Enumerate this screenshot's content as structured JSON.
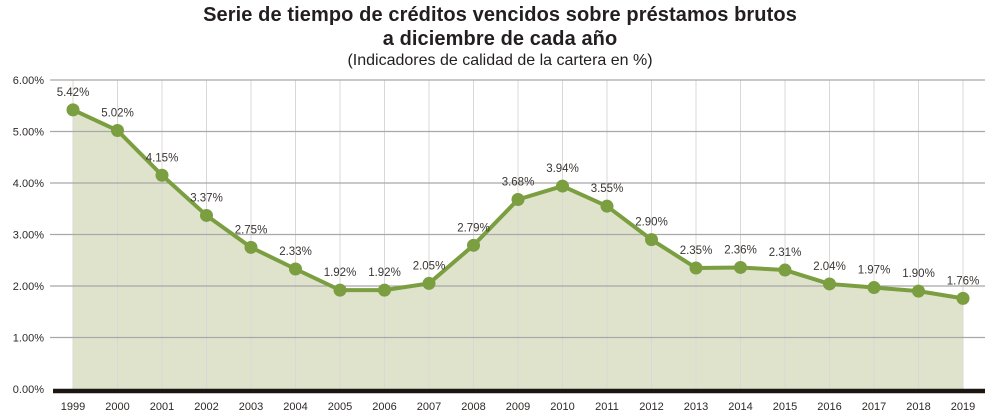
{
  "header": {
    "title_line1": "Serie de tiempo de créditos vencidos sobre préstamos brutos",
    "title_line2": "a diciembre de cada año",
    "subtitle": "(Indicadores de calidad de la cartera en %)"
  },
  "chart_data": {
    "type": "area",
    "title": "Serie de tiempo de créditos vencidos sobre préstamos brutos a diciembre de cada año",
    "subtitle": "(Indicadores de calidad de la cartera en %)",
    "x": [
      "1999",
      "2000",
      "2001",
      "2002",
      "2003",
      "2004",
      "2005",
      "2006",
      "2007",
      "2008",
      "2009",
      "2010",
      "2011",
      "2012",
      "2013",
      "2014",
      "2015",
      "2016",
      "2017",
      "2018",
      "2019"
    ],
    "values": [
      5.42,
      5.02,
      4.15,
      3.37,
      2.75,
      2.33,
      1.92,
      1.92,
      2.05,
      2.79,
      3.68,
      3.94,
      3.55,
      2.9,
      2.35,
      2.36,
      2.31,
      2.04,
      1.97,
      1.9,
      1.76
    ],
    "point_labels": [
      "5.42%",
      "5.02%",
      "4.15%",
      "3.37%",
      "2.75%",
      "2.33%",
      "1.92%",
      "1.92%",
      "2.05%",
      "2.79%",
      "3.68%",
      "3.94%",
      "3.55%",
      "2.90%",
      "2.35%",
      "2.36%",
      "2.31%",
      "2.04%",
      "1.97%",
      "1.90%",
      "1.76%"
    ],
    "yticks": [
      "0.00%",
      "1.00%",
      "2.00%",
      "3.00%",
      "4.00%",
      "5.00%",
      "6.00%"
    ],
    "ylim": [
      0,
      6
    ],
    "xlabel": "",
    "ylabel": "",
    "grid": true,
    "legend_position": "none",
    "colors": {
      "line": "#7a9e40",
      "marker": "#7a9e40",
      "fill": "#dfe3cc",
      "hgrid": "#a8a8a8",
      "vgrid": "#d8d8d8",
      "axis": "#1c1612",
      "title": "#231f20"
    }
  }
}
